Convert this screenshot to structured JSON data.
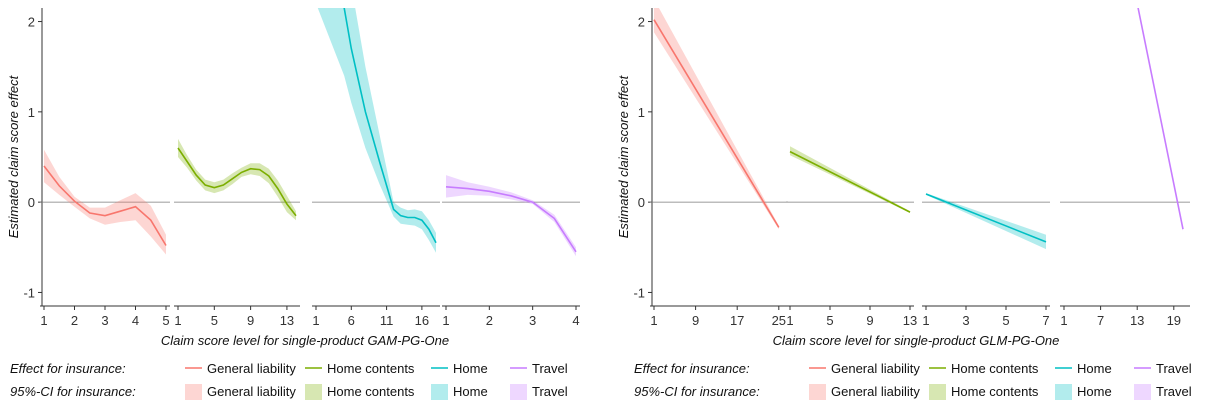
{
  "chart_data": [
    {
      "type": "line",
      "xlabel": "Claim score level for single-product GAM-PG-One",
      "ylabel": "Estimated claim score effect",
      "ylim": [
        -1.15,
        2.15
      ],
      "y_ticks": [
        -1,
        0,
        1,
        2
      ],
      "legend": {
        "effect_title": "Effect for insurance:",
        "ci_title": "95%-CI for insurance:",
        "labels": [
          "General liability",
          "Home contents",
          "Home",
          "Travel"
        ]
      },
      "panels": [
        {
          "name": "General liability",
          "color": "#F8766D",
          "xlim": [
            1,
            5
          ],
          "x_ticks": [
            1,
            2,
            3,
            4,
            5
          ],
          "x": [
            1,
            1.5,
            2,
            2.5,
            3,
            3.5,
            4,
            4.5,
            5
          ],
          "y": [
            0.4,
            0.18,
            0.01,
            -0.12,
            -0.15,
            -0.1,
            -0.05,
            -0.2,
            -0.48
          ],
          "lower": [
            0.22,
            0.08,
            -0.05,
            -0.18,
            -0.25,
            -0.22,
            -0.2,
            -0.38,
            -0.58
          ],
          "upper": [
            0.58,
            0.28,
            0.06,
            -0.06,
            -0.06,
            0.02,
            0.1,
            -0.04,
            -0.36
          ]
        },
        {
          "name": "Home contents",
          "color": "#7CAE00",
          "xlim": [
            1,
            14
          ],
          "x_ticks": [
            1,
            5,
            9,
            13
          ],
          "x": [
            1,
            2,
            3,
            4,
            5,
            6,
            7,
            8,
            9,
            10,
            11,
            12,
            13,
            14
          ],
          "y": [
            0.6,
            0.45,
            0.3,
            0.19,
            0.16,
            0.19,
            0.26,
            0.33,
            0.37,
            0.36,
            0.29,
            0.15,
            -0.02,
            -0.15
          ],
          "lower": [
            0.5,
            0.38,
            0.24,
            0.13,
            0.1,
            0.13,
            0.2,
            0.28,
            0.31,
            0.29,
            0.21,
            0.06,
            -0.11,
            -0.2
          ],
          "upper": [
            0.7,
            0.52,
            0.36,
            0.25,
            0.22,
            0.25,
            0.32,
            0.38,
            0.43,
            0.43,
            0.37,
            0.24,
            0.07,
            -0.1
          ]
        },
        {
          "name": "Home",
          "color": "#00BFC4",
          "xlim": [
            1,
            18
          ],
          "x_ticks": [
            1,
            6,
            11,
            16
          ],
          "x": [
            1,
            5,
            6,
            8,
            10,
            12,
            13,
            14,
            15,
            16,
            17,
            18
          ],
          "y": [
            3.2,
            2.15,
            1.7,
            1.0,
            0.45,
            -0.08,
            -0.15,
            -0.17,
            -0.17,
            -0.2,
            -0.3,
            -0.45
          ],
          "lower": [
            2.2,
            1.4,
            1.1,
            0.6,
            0.2,
            -0.16,
            -0.24,
            -0.25,
            -0.26,
            -0.3,
            -0.42,
            -0.56
          ],
          "upper": [
            4.2,
            2.9,
            2.4,
            1.5,
            0.75,
            0.0,
            -0.06,
            -0.09,
            -0.08,
            -0.1,
            -0.2,
            -0.34
          ]
        },
        {
          "name": "Travel",
          "color": "#C77CFF",
          "xlim": [
            1,
            4
          ],
          "x_ticks": [
            1,
            2,
            3,
            4
          ],
          "x": [
            1,
            1.5,
            2,
            2.5,
            3,
            3.5,
            4
          ],
          "y": [
            0.17,
            0.15,
            0.12,
            0.07,
            0.0,
            -0.18,
            -0.55
          ],
          "lower": [
            0.05,
            0.08,
            0.07,
            0.03,
            -0.02,
            -0.22,
            -0.6
          ],
          "upper": [
            0.3,
            0.22,
            0.17,
            0.11,
            0.02,
            -0.14,
            -0.5
          ]
        }
      ]
    },
    {
      "type": "line",
      "xlabel": "Claim score level for single-product GLM-PG-One",
      "ylabel": "Estimated claim score effect",
      "ylim": [
        -1.15,
        2.15
      ],
      "y_ticks": [
        -1,
        0,
        1,
        2
      ],
      "legend": {
        "effect_title": "Effect for insurance:",
        "ci_title": "95%-CI for insurance:",
        "labels": [
          "General liability",
          "Home contents",
          "Home",
          "Travel"
        ]
      },
      "panels": [
        {
          "name": "General liability",
          "color": "#F8766D",
          "xlim": [
            1,
            26
          ],
          "x_ticks": [
            1,
            9,
            17,
            25
          ],
          "x": [
            1,
            25
          ],
          "y": [
            2.02,
            -0.28
          ],
          "lower": [
            1.88,
            -0.3
          ],
          "upper": [
            2.25,
            -0.26
          ]
        },
        {
          "name": "Home contents",
          "color": "#7CAE00",
          "xlim": [
            1,
            13
          ],
          "x_ticks": [
            1,
            5,
            9,
            13
          ],
          "x": [
            1,
            13
          ],
          "y": [
            0.56,
            -0.11
          ],
          "lower": [
            0.52,
            -0.12
          ],
          "upper": [
            0.62,
            -0.1
          ]
        },
        {
          "name": "Home",
          "color": "#00BFC4",
          "xlim": [
            1,
            7
          ],
          "x_ticks": [
            1,
            3,
            5,
            7
          ],
          "x": [
            1,
            7
          ],
          "y": [
            0.09,
            -0.44
          ],
          "lower": [
            0.08,
            -0.52
          ],
          "upper": [
            0.1,
            -0.36
          ]
        },
        {
          "name": "Travel",
          "color": "#C77CFF",
          "xlim": [
            1,
            21
          ],
          "x_ticks": [
            1,
            7,
            13,
            19
          ],
          "x": [
            13,
            20.5
          ],
          "y": [
            2.2,
            -0.3
          ],
          "lower": [
            2.18,
            -0.32
          ],
          "upper": [
            2.22,
            -0.28
          ]
        }
      ]
    }
  ]
}
